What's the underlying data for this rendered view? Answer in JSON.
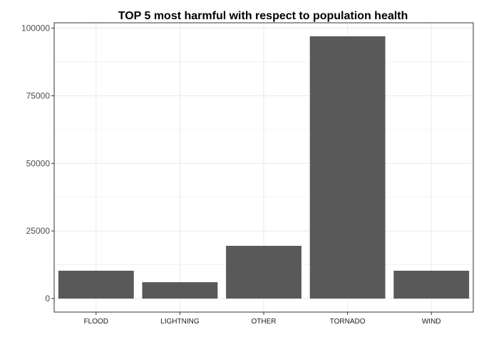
{
  "chart_data": {
    "type": "bar",
    "title": "TOP 5 most harmful with respect to population health",
    "xlabel": "",
    "ylabel": "",
    "categories": [
      "FLOOD",
      "LIGHTNING",
      "OTHER",
      "TORNADO",
      "WIND"
    ],
    "values": [
      10300,
      6050,
      19500,
      97000,
      10300
    ],
    "yticks": [
      0,
      25000,
      50000,
      75000,
      100000
    ],
    "ytick_labels": [
      "0",
      "25000",
      "50000",
      "75000",
      "100000"
    ],
    "ylim": [
      -5000,
      102000
    ],
    "grid": true,
    "bar_color": "#595959",
    "grid_color": "#ebebeb",
    "panel_border_color": "#333333"
  }
}
